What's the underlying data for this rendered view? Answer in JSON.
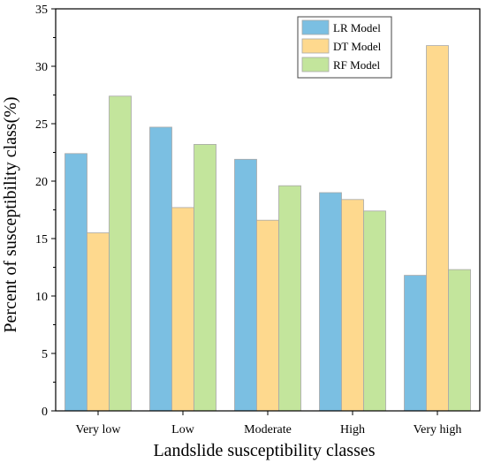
{
  "chart_data": {
    "type": "bar",
    "xlabel": "Landslide susceptibility classes",
    "ylabel": "Percent of susceptibility class(%)",
    "ylim": [
      0,
      35
    ],
    "yticks": [
      0,
      5,
      10,
      15,
      20,
      25,
      30,
      35
    ],
    "categories": [
      "Very low",
      "Low",
      "Moderate",
      "High",
      "Very high"
    ],
    "series": [
      {
        "name": "LR Model",
        "color": "#7bbfe2",
        "values": [
          22.4,
          24.7,
          21.9,
          19.0,
          11.8
        ]
      },
      {
        "name": "DT Model",
        "color": "#fed98e",
        "values": [
          15.5,
          17.7,
          16.6,
          18.4,
          31.8
        ]
      },
      {
        "name": "RF Model",
        "color": "#c3e59c",
        "values": [
          27.4,
          23.2,
          19.6,
          17.4,
          12.3
        ]
      }
    ],
    "legend_position": "top-right",
    "grid": false
  }
}
